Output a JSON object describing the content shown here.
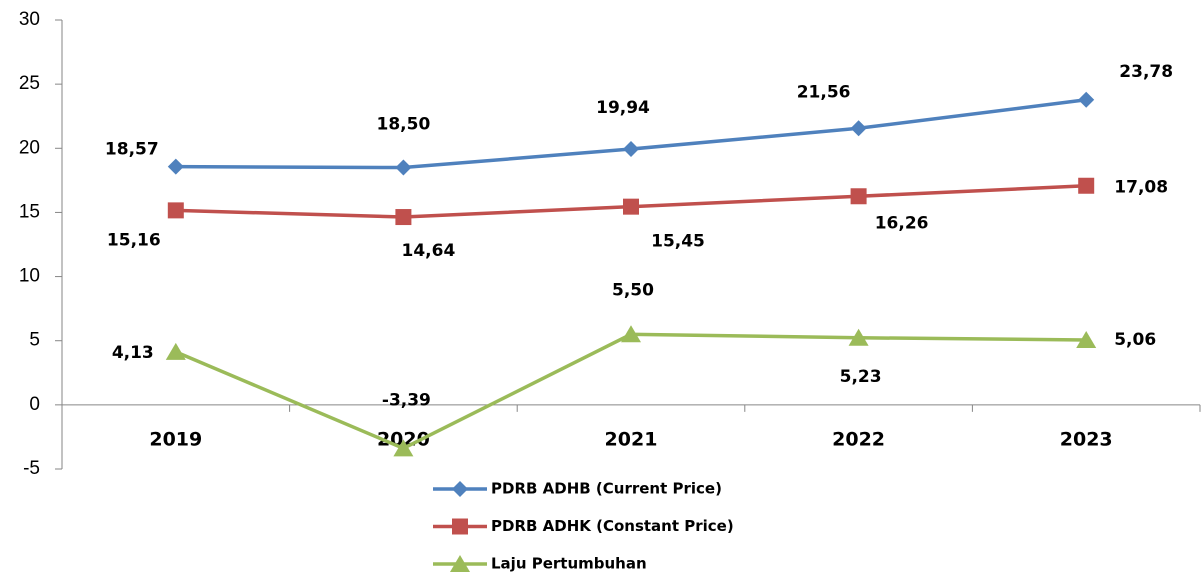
{
  "chart_data": {
    "type": "line",
    "categories": [
      "2019",
      "2020",
      "2021",
      "2022",
      "2023"
    ],
    "series": [
      {
        "name": "PDRB ADHB (Current Price)",
        "color": "#4f81bd",
        "marker": "diamond",
        "values": [
          18.57,
          18.5,
          19.94,
          21.56,
          23.78
        ],
        "value_labels": [
          "18,57",
          "18,50",
          "19,94",
          "21,56",
          "23,78"
        ]
      },
      {
        "name": "PDRB ADHK (Constant Price)",
        "color": "#c0504d",
        "marker": "square",
        "values": [
          15.16,
          14.64,
          15.45,
          16.26,
          17.08
        ],
        "value_labels": [
          "15,16",
          "14,64",
          "15,45",
          "16,26",
          "17,08"
        ]
      },
      {
        "name": "Laju Pertumbuhan",
        "color": "#9bbb59",
        "marker": "triangle",
        "values": [
          4.13,
          -3.39,
          5.5,
          5.23,
          5.06
        ],
        "value_labels": [
          "4,13",
          "-3,39",
          "5,50",
          "5,23",
          "5,06"
        ]
      }
    ],
    "ylim": [
      -5,
      30
    ],
    "yticks": [
      -5,
      0,
      5,
      10,
      15,
      20,
      25,
      30
    ],
    "grid": false,
    "legend": "bottom"
  }
}
